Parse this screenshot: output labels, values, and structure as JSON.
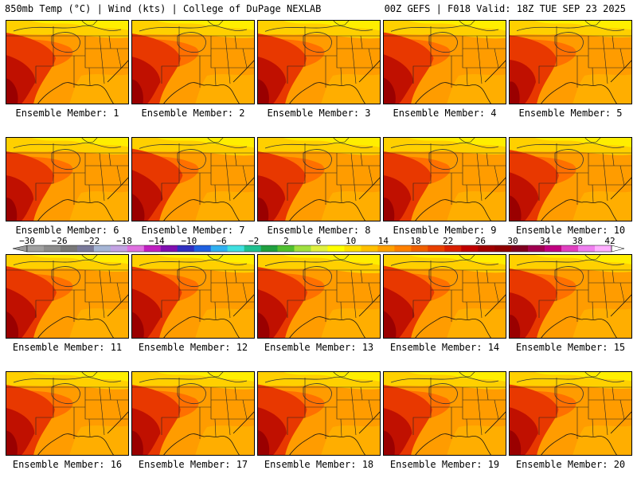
{
  "header": {
    "left": "850mb Temp (°C) | Wind (kts) | College of DuPage NEXLAB",
    "right": "00Z GEFS | F018 Valid: 18Z TUE SEP 23 2025"
  },
  "caption_prefix": "Ensemble Member: ",
  "members": [
    {
      "id": "1",
      "hot": 0.8,
      "warm": 0.5
    },
    {
      "id": "2",
      "hot": 0.7,
      "warm": 0.5
    },
    {
      "id": "3",
      "hot": 0.7,
      "warm": 0.6
    },
    {
      "id": "4",
      "hot": 0.85,
      "warm": 0.6
    },
    {
      "id": "5",
      "hot": 0.5,
      "warm": 0.4
    },
    {
      "id": "6",
      "hot": 0.6,
      "warm": 0.4
    },
    {
      "id": "7",
      "hot": 0.95,
      "warm": 0.6
    },
    {
      "id": "8",
      "hot": 0.6,
      "warm": 0.5
    },
    {
      "id": "9",
      "hot": 0.6,
      "warm": 0.4
    },
    {
      "id": "10",
      "hot": 0.8,
      "warm": 0.5
    },
    {
      "id": "11",
      "hot": 0.9,
      "warm": 0.4
    },
    {
      "id": "12",
      "hot": 0.85,
      "warm": 0.6
    },
    {
      "id": "13",
      "hot": 0.8,
      "warm": 0.7
    },
    {
      "id": "14",
      "hot": 0.95,
      "warm": 0.6
    },
    {
      "id": "15",
      "hot": 0.6,
      "warm": 0.5
    },
    {
      "id": "16",
      "hot": 0.7,
      "warm": 0.5
    },
    {
      "id": "17",
      "hot": 0.7,
      "warm": 0.5
    },
    {
      "id": "18",
      "hot": 0.75,
      "warm": 0.5
    },
    {
      "id": "19",
      "hot": 0.7,
      "warm": 0.5
    },
    {
      "id": "20",
      "hot": 0.75,
      "warm": 0.4
    }
  ],
  "colorbar": {
    "tick_labels": [
      "-30",
      "-26",
      "-22",
      "-18",
      "-14",
      "-10",
      "-6",
      "-2",
      "2",
      "6",
      "10",
      "14",
      "18",
      "22",
      "26",
      "30",
      "34",
      "38",
      "42"
    ],
    "colors": [
      "#a0a0a0",
      "#8c8c8c",
      "#787878",
      "#7a7a9a",
      "#a5b5d5",
      "#c3a3e3",
      "#e070e0",
      "#c020c0",
      "#8010b0",
      "#3030c0",
      "#2060e0",
      "#30b0f0",
      "#40e0e0",
      "#20c090",
      "#20a040",
      "#50c030",
      "#a0e040",
      "#e0f040",
      "#ffff00",
      "#ffe000",
      "#ffc000",
      "#ffa000",
      "#ff8000",
      "#f06000",
      "#e84000",
      "#d82000",
      "#c00000",
      "#a00000",
      "#900000",
      "#800020",
      "#a00050",
      "#c00080",
      "#e040c0",
      "#f080f0",
      "#ffb0ff"
    ]
  }
}
